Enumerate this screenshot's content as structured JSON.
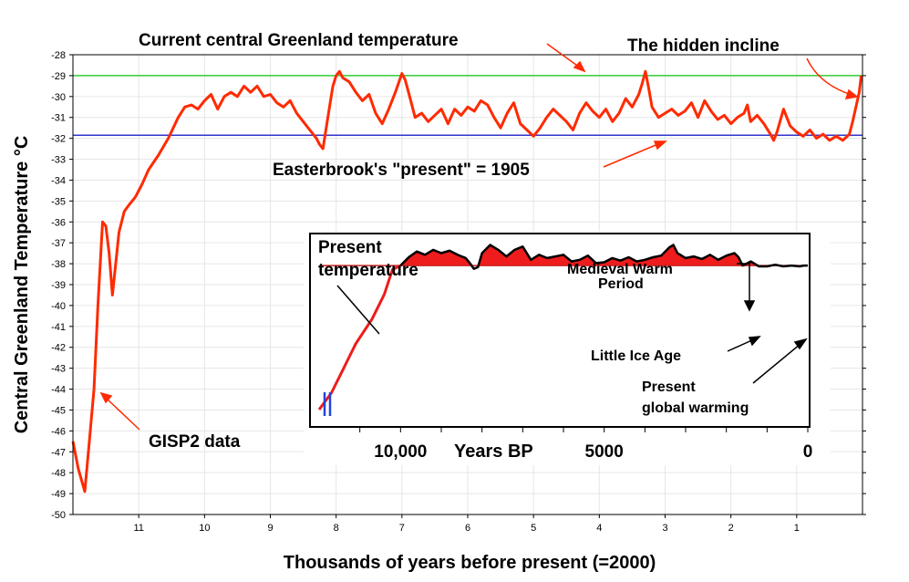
{
  "chart_data": [
    {
      "type": "line",
      "title": "",
      "xlabel": "Thousands of years before present (=2000)",
      "ylabel": "Central Greenland Temperature °C",
      "xlim": [
        12,
        0
      ],
      "ylim": [
        -50,
        -28
      ],
      "x_ticks": [
        "11",
        "10",
        "9",
        "8",
        "7",
        "6",
        "5",
        "4",
        "3",
        "2",
        "1"
      ],
      "y_ticks": [
        "-28",
        "-29",
        "-30",
        "-31",
        "-32",
        "-33",
        "-34",
        "-35",
        "-36",
        "-37",
        "-38",
        "-39",
        "-40",
        "-41",
        "-42",
        "-43",
        "-44",
        "-45",
        "-46",
        "-47",
        "-48",
        "-49",
        "-50"
      ],
      "grid": true,
      "series": [
        {
          "name": "GISP2 data",
          "color": "#ff2a00",
          "x": [
            12.0,
            11.92,
            11.82,
            11.75,
            11.68,
            11.62,
            11.55,
            11.5,
            11.45,
            11.4,
            11.35,
            11.3,
            11.22,
            11.15,
            11.05,
            10.95,
            10.85,
            10.7,
            10.55,
            10.4,
            10.3,
            10.2,
            10.1,
            10.0,
            9.9,
            9.8,
            9.7,
            9.6,
            9.5,
            9.4,
            9.3,
            9.2,
            9.1,
            9.0,
            8.9,
            8.8,
            8.7,
            8.6,
            8.5,
            8.4,
            8.3,
            8.25,
            8.2,
            8.1,
            8.05,
            8.0,
            7.95,
            7.9,
            7.8,
            7.7,
            7.6,
            7.5,
            7.4,
            7.3,
            7.2,
            7.1,
            7.0,
            6.95,
            6.9,
            6.8,
            6.7,
            6.6,
            6.5,
            6.4,
            6.3,
            6.2,
            6.1,
            6.0,
            5.9,
            5.8,
            5.7,
            5.6,
            5.5,
            5.4,
            5.3,
            5.2,
            5.1,
            5.0,
            4.9,
            4.8,
            4.7,
            4.6,
            4.5,
            4.4,
            4.3,
            4.2,
            4.1,
            4.0,
            3.9,
            3.8,
            3.7,
            3.6,
            3.5,
            3.4,
            3.35,
            3.3,
            3.25,
            3.2,
            3.1,
            3.0,
            2.9,
            2.8,
            2.7,
            2.6,
            2.5,
            2.4,
            2.3,
            2.2,
            2.1,
            2.0,
            1.9,
            1.8,
            1.75,
            1.7,
            1.6,
            1.5,
            1.4,
            1.35,
            1.3,
            1.2,
            1.1,
            1.0,
            0.9,
            0.8,
            0.7,
            0.6,
            0.5,
            0.4,
            0.3,
            0.2,
            0.15,
            0.1,
            0.05,
            0.02
          ],
          "y": [
            -46.5,
            -47.8,
            -48.9,
            -46.5,
            -44.0,
            -40.0,
            -36.0,
            -36.2,
            -37.5,
            -39.5,
            -38.0,
            -36.5,
            -35.5,
            -35.2,
            -34.8,
            -34.2,
            -33.5,
            -32.8,
            -32.0,
            -31.0,
            -30.5,
            -30.4,
            -30.6,
            -30.2,
            -29.9,
            -30.6,
            -30.0,
            -29.8,
            -30.0,
            -29.5,
            -29.8,
            -29.5,
            -30.0,
            -29.9,
            -30.3,
            -30.5,
            -30.2,
            -30.8,
            -31.2,
            -31.6,
            -32.0,
            -32.3,
            -32.5,
            -30.5,
            -29.5,
            -29.0,
            -28.8,
            -29.1,
            -29.3,
            -29.8,
            -30.2,
            -29.9,
            -30.8,
            -31.3,
            -30.6,
            -29.8,
            -28.9,
            -29.2,
            -29.8,
            -31.0,
            -30.8,
            -31.2,
            -30.9,
            -30.6,
            -31.3,
            -30.6,
            -30.9,
            -30.5,
            -30.7,
            -30.2,
            -30.4,
            -31.0,
            -31.5,
            -30.8,
            -30.3,
            -31.3,
            -31.6,
            -31.9,
            -31.5,
            -31.0,
            -30.6,
            -30.9,
            -31.2,
            -31.6,
            -30.8,
            -30.3,
            -30.7,
            -31.0,
            -30.6,
            -31.2,
            -30.8,
            -30.1,
            -30.5,
            -29.9,
            -29.4,
            -28.8,
            -29.6,
            -30.5,
            -31.0,
            -30.8,
            -30.6,
            -30.9,
            -30.7,
            -30.3,
            -31.0,
            -30.2,
            -30.7,
            -31.1,
            -30.9,
            -31.3,
            -31.0,
            -30.8,
            -30.4,
            -31.2,
            -30.9,
            -31.3,
            -31.8,
            -32.1,
            -31.7,
            -30.6,
            -31.4,
            -31.7,
            -31.9,
            -31.6,
            -32.0,
            -31.8,
            -32.1,
            -31.9,
            -32.1,
            -31.8,
            -31.2,
            -30.5,
            -29.8,
            -29.0
          ]
        }
      ],
      "reference_lines": [
        {
          "name": "Current central Greenland temperature",
          "y": -29,
          "color": "#33cc33"
        },
        {
          "name": "Easterbrook's \"present\" = 1905",
          "y": -31.85,
          "color": "#3333cc"
        }
      ],
      "annotations": [
        "Current central Greenland temperature",
        "The hidden incline",
        "Easterbrook's \"present\" = 1905",
        "GISP2 data"
      ]
    },
    {
      "type": "area",
      "title": "",
      "xlabel": "Years BP",
      "x_ticks": [
        "10,000",
        "5000",
        "0"
      ],
      "xlim": [
        12000,
        0
      ],
      "baseline": -31.5,
      "annotations": [
        "Present temperature",
        "Medieval Warm Period",
        "Little Ice Age",
        "Present global warming"
      ],
      "series": [
        {
          "name": "",
          "color": "#000000",
          "x": [
            12000,
            11700,
            11400,
            11100,
            10700,
            10400,
            10200,
            10000,
            9800,
            9600,
            9400,
            9200,
            9000,
            8800,
            8600,
            8400,
            8300,
            8200,
            8100,
            8000,
            7800,
            7600,
            7400,
            7200,
            7000,
            6800,
            6600,
            6400,
            6200,
            6000,
            5800,
            5600,
            5400,
            5200,
            5000,
            4800,
            4600,
            4400,
            4200,
            4000,
            3800,
            3600,
            3400,
            3300,
            3200,
            3000,
            2800,
            2600,
            2400,
            2200,
            2000,
            1800,
            1700,
            1600,
            1400,
            1200,
            1000,
            800,
            600,
            400,
            200,
            100,
            0
          ],
          "y": [
            -49.0,
            -47.0,
            -44.0,
            -41.0,
            -38.0,
            -35.0,
            -32.0,
            -31.5,
            -30.5,
            -29.8,
            -30.2,
            -29.6,
            -30.0,
            -29.7,
            -30.2,
            -30.6,
            -31.2,
            -31.9,
            -31.7,
            -30.0,
            -29.0,
            -29.6,
            -30.4,
            -29.6,
            -29.2,
            -30.8,
            -30.2,
            -30.6,
            -30.4,
            -30.2,
            -31.0,
            -30.8,
            -30.3,
            -31.2,
            -31.1,
            -30.6,
            -30.9,
            -30.5,
            -31.0,
            -30.8,
            -30.5,
            -30.3,
            -29.3,
            -29.0,
            -30.0,
            -30.6,
            -30.4,
            -30.7,
            -30.2,
            -30.8,
            -30.3,
            -30.0,
            -30.5,
            -31.5,
            -31.0,
            -31.6,
            -31.6,
            -31.4,
            -31.6,
            -31.5,
            -31.6,
            -31.5,
            -31.5
          ]
        }
      ]
    }
  ],
  "labels": {
    "current_temp": "Current central Greenland temperature",
    "hidden_incline": "The hidden incline",
    "easterbrook": "Easterbrook's \"present\" = 1905",
    "gisp2": "GISP2 data",
    "inset_present_1": "Present",
    "inset_present_2": "temperature",
    "inset_mwp_1": "Medieval Warm",
    "inset_mwp_2": "Period",
    "inset_lia": "Little Ice Age",
    "inset_pgw_1": "Present",
    "inset_pgw_2": "global warming"
  }
}
